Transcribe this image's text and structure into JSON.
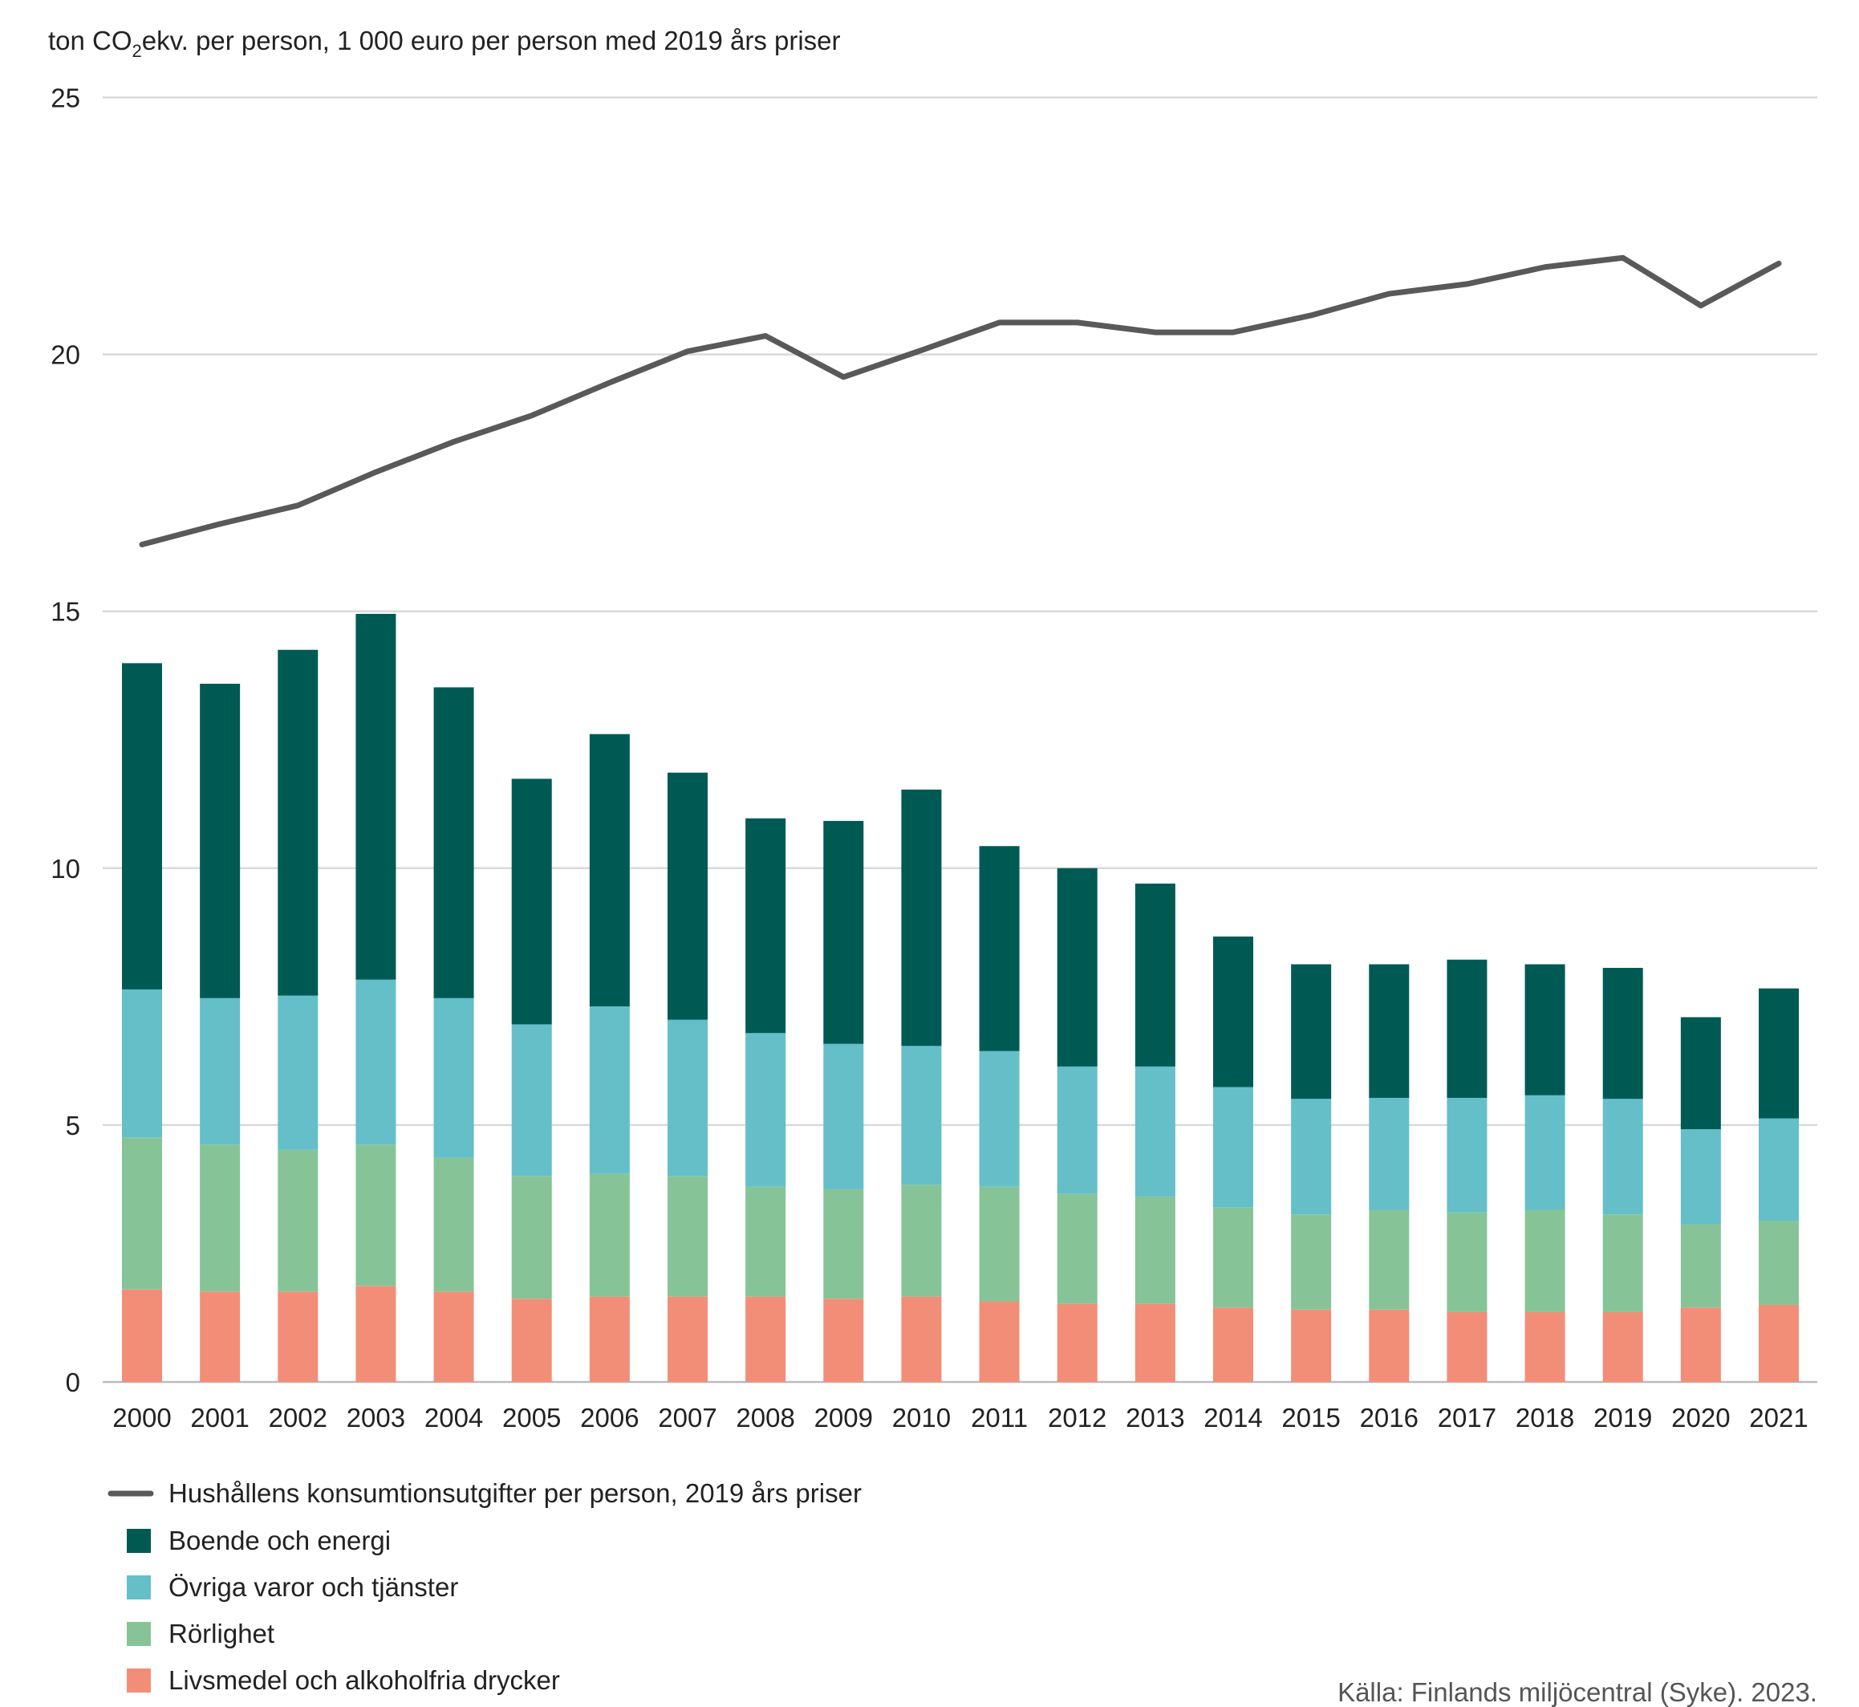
{
  "chart_data": {
    "type": "bar",
    "stacked": true,
    "title_parts": {
      "prefix": "ton CO",
      "subscript": "2",
      "suffix": "ekv. per person, 1 000 euro per person med 2019 års priser"
    },
    "ylim": [
      0,
      25
    ],
    "yticks": [
      "0",
      "5",
      "10",
      "15",
      "20",
      "25"
    ],
    "grid": true,
    "legend_placement": "bottom-left",
    "categories": [
      "2000",
      "2001",
      "2002",
      "2003",
      "2004",
      "2005",
      "2006",
      "2007",
      "2008",
      "2009",
      "2010",
      "2011",
      "2012",
      "2013",
      "2014",
      "2015",
      "2016",
      "2017",
      "2018",
      "2019",
      "2020",
      "2021"
    ],
    "series": [
      {
        "name": "Livsmedel och alkoholfria drycker",
        "color": "#f28e78",
        "values": [
          1.8,
          1.76,
          1.76,
          1.87,
          1.76,
          1.62,
          1.66,
          1.66,
          1.66,
          1.62,
          1.66,
          1.57,
          1.52,
          1.52,
          1.45,
          1.41,
          1.41,
          1.36,
          1.36,
          1.36,
          1.45,
          1.5
        ]
      },
      {
        "name": "Rörlighet",
        "color": "#86c497",
        "values": [
          2.96,
          2.86,
          2.76,
          2.75,
          2.6,
          2.39,
          2.39,
          2.35,
          2.14,
          2.13,
          2.18,
          2.23,
          2.14,
          2.09,
          1.95,
          1.85,
          1.94,
          1.94,
          1.99,
          1.9,
          1.62,
          1.64
        ]
      },
      {
        "name": "Övriga varor och tjänster",
        "color": "#64bfc9",
        "values": [
          2.88,
          2.85,
          3.0,
          3.21,
          3.11,
          2.95,
          3.26,
          3.04,
          2.99,
          2.83,
          2.7,
          2.64,
          2.48,
          2.53,
          2.34,
          2.25,
          2.18,
          2.23,
          2.23,
          2.25,
          1.85,
          1.99
        ]
      },
      {
        "name": "Boende och energi",
        "color": "#005a54",
        "values": [
          6.35,
          6.12,
          6.73,
          7.12,
          6.05,
          4.78,
          5.3,
          4.81,
          4.18,
          4.34,
          4.99,
          3.99,
          3.86,
          3.56,
          2.93,
          2.62,
          2.6,
          2.69,
          2.55,
          2.55,
          2.18,
          2.53
        ]
      }
    ],
    "line": {
      "name": "Hushållens konsumtionsutgifter per person, 2019 års priser",
      "color": "#595959",
      "values": [
        16.3,
        16.7,
        17.06,
        17.71,
        18.3,
        18.81,
        19.45,
        20.06,
        20.36,
        19.56,
        20.08,
        20.62,
        20.62,
        20.43,
        20.43,
        20.76,
        21.18,
        21.37,
        21.7,
        21.88,
        20.95,
        21.77
      ]
    },
    "source": "Källa: Finlands miljöcentral (Syke). 2023."
  }
}
